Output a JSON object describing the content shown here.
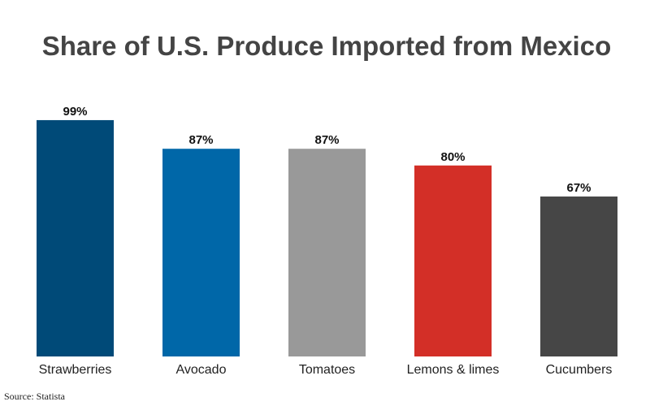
{
  "chart_data": {
    "type": "bar",
    "title": "Share of U.S. Produce Imported from Mexico",
    "categories": [
      "Strawberries",
      "Avocado",
      "Tomatoes",
      "Lemons & limes",
      "Cucumbers"
    ],
    "values": [
      99,
      87,
      87,
      80,
      67
    ],
    "value_labels": [
      "99%",
      "87%",
      "87%",
      "80%",
      "67%"
    ],
    "colors": [
      "#004a78",
      "#0067a8",
      "#999999",
      "#d32f27",
      "#464646"
    ],
    "ylim": [
      0,
      100
    ],
    "grid": false,
    "legend": "none",
    "xlabel": "",
    "ylabel": ""
  },
  "source": "Source: Statista"
}
